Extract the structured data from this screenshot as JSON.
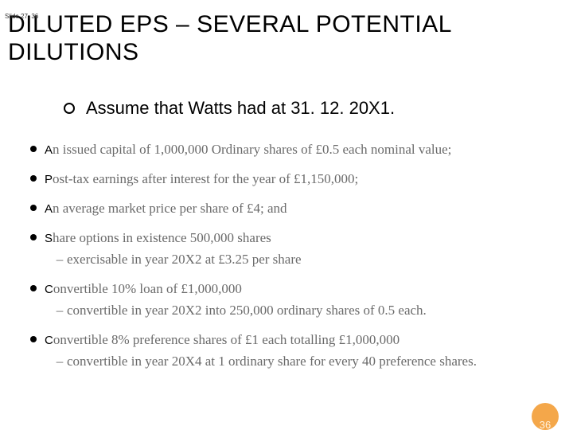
{
  "slide_tag": "Slide 27. 36",
  "title": "DILUTED EPS – SEVERAL POTENTIAL DILUTIONS",
  "assume_text": "Assume that Watts had at 31. 12. 20X1.",
  "items": [
    {
      "lead": "A",
      "rest": "n issued capital of 1,000,000 Ordinary shares of £0.5 each nominal value;",
      "sub": null
    },
    {
      "lead": "P",
      "rest": "ost-tax earnings after interest for the year of £1,150,000;",
      "sub": null
    },
    {
      "lead": "A",
      "rest": "n average market price per share of £4; and",
      "sub": null
    },
    {
      "lead": "S",
      "rest": "hare options in existence 500,000 shares",
      "sub": "exercisable in year 20X2 at £3.25 per share"
    },
    {
      "lead": "C",
      "rest": "onvertible 10% loan of £1,000,000",
      "sub": "convertible in year 20X2 into 250,000 ordinary shares of 0.5 each."
    },
    {
      "lead": "C",
      "rest": "onvertible 8% preference shares of £1 each totalling £1,000,000",
      "sub": "convertible in year 20X4 at 1 ordinary share for every 40 preference shares."
    }
  ],
  "page_number": "36",
  "colors": {
    "background": "#ffffff",
    "text_black": "#000000",
    "text_grey": "#6a6a6a",
    "badge_bg": "#f4a74a",
    "badge_fg": "#fff3e0"
  }
}
